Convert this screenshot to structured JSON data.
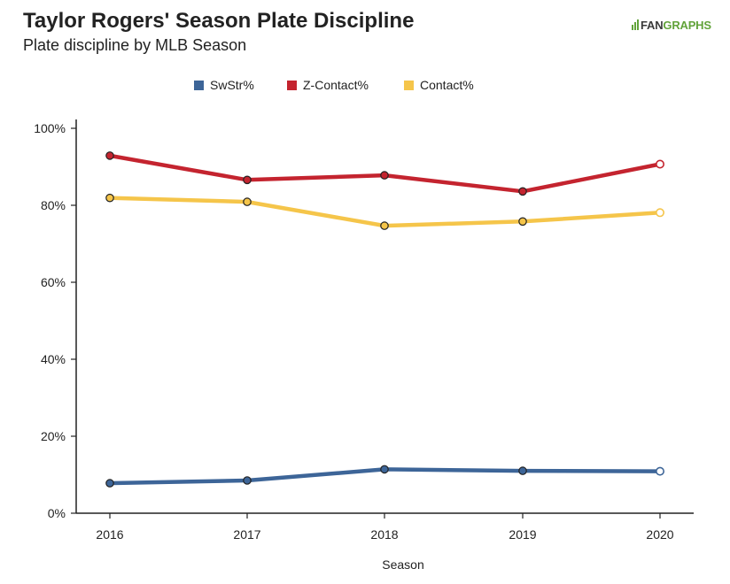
{
  "title": "Taylor Rogers' Season Plate Discipline",
  "subtitle": "Plate discipline by MLB Season",
  "logo": {
    "fan": "FAN",
    "graphs": "GRAPHS"
  },
  "chart_data": {
    "type": "line",
    "title": "Taylor Rogers' Season Plate Discipline",
    "subtitle": "Plate discipline by MLB Season",
    "xlabel": "Season",
    "ylabel": "",
    "x": [
      2016,
      2017,
      2018,
      2019,
      2020
    ],
    "x_ticks": [
      "2016",
      "2017",
      "2018",
      "2019",
      "2020"
    ],
    "ylim": [
      0,
      100
    ],
    "y_ticks": [
      0,
      20,
      40,
      60,
      80,
      100
    ],
    "y_tick_labels": [
      "0%",
      "20%",
      "40%",
      "60%",
      "80%",
      "100%"
    ],
    "legend_position": "top-center",
    "grid": false,
    "series": [
      {
        "name": "SwStr%",
        "color": "#3d6598",
        "values": [
          7.8,
          8.5,
          11.4,
          11.0,
          10.9
        ]
      },
      {
        "name": "Z-Contact%",
        "color": "#c4242f",
        "values": [
          92.9,
          86.6,
          87.8,
          83.6,
          90.7
        ]
      },
      {
        "name": "Contact%",
        "color": "#f5c54a",
        "values": [
          81.9,
          80.9,
          74.7,
          75.8,
          78.1
        ]
      }
    ],
    "last_point_open_marker": true
  }
}
